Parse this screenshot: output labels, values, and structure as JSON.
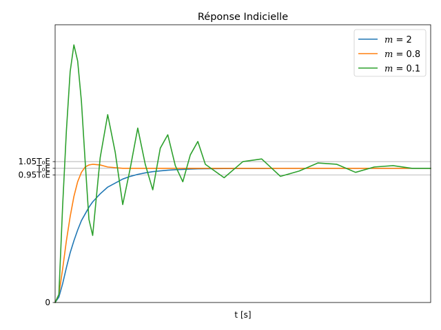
{
  "chart_data": {
    "type": "line",
    "title": "Réponse Indicielle",
    "xlabel": "t [s]",
    "ylabel": "",
    "xlim": [
      0,
      10
    ],
    "ylim": [
      0,
      2.07
    ],
    "x_ticks": [],
    "y_ticks": [
      {
        "value": 0,
        "label": "0"
      },
      {
        "value": 0.95,
        "label": "0.95T₀E"
      },
      {
        "value": 1.0,
        "label": "T₀E"
      },
      {
        "value": 1.05,
        "label": "1.05T₀E"
      }
    ],
    "reference_lines": [
      0.95,
      1.0,
      1.05
    ],
    "grid": false,
    "legend": "top-right",
    "series": [
      {
        "name": "m = 2",
        "legend_var": "m",
        "legend_val": "2",
        "color": "#1f77b4",
        "zeta": 2
      },
      {
        "name": "m = 0.8",
        "legend_var": "m",
        "legend_val": "0.8",
        "color": "#ff7f0e",
        "zeta": 0.8
      },
      {
        "name": "m = 0.1",
        "legend_var": "m",
        "legend_val": "0.1",
        "color": "#2ca02c",
        "zeta": 0.1
      }
    ],
    "x": [
      0.0,
      0.1,
      0.2,
      0.3,
      0.4,
      0.5,
      0.6,
      0.7,
      0.8,
      0.9,
      1.0,
      1.2,
      1.4,
      1.6,
      1.8,
      2.0,
      2.2,
      2.4,
      2.6,
      2.8,
      3.0,
      3.2,
      3.4,
      3.6,
      3.8,
      4.0,
      4.5,
      5.0,
      5.5,
      6.0,
      6.5,
      7.0,
      7.5,
      8.0,
      8.5,
      9.0,
      9.5,
      10.0
    ],
    "values": {
      "m = 2": [
        0.0,
        0.04,
        0.14,
        0.26,
        0.37,
        0.46,
        0.54,
        0.61,
        0.66,
        0.71,
        0.75,
        0.81,
        0.86,
        0.89,
        0.92,
        0.94,
        0.955,
        0.966,
        0.975,
        0.981,
        0.986,
        0.99,
        0.992,
        0.994,
        0.996,
        0.997,
        0.998,
        0.999,
        0.999,
        1.0,
        1.0,
        1.0,
        1.0,
        1.0,
        1.0,
        1.0,
        1.0,
        1.0
      ],
      "m = 0.8": [
        0.0,
        0.06,
        0.25,
        0.46,
        0.64,
        0.79,
        0.9,
        0.97,
        1.01,
        1.025,
        1.03,
        1.025,
        1.01,
        1.005,
        1.0,
        1.0,
        1.0,
        1.0,
        1.0,
        1.0,
        1.0,
        1.0,
        1.0,
        1.0,
        1.0,
        1.0,
        1.0,
        1.0,
        1.0,
        1.0,
        1.0,
        1.0,
        1.0,
        1.0,
        1.0,
        1.0,
        1.0,
        1.0
      ],
      "m = 0.1": [
        0.0,
        0.06,
        0.72,
        1.28,
        1.72,
        1.92,
        1.8,
        1.5,
        1.05,
        0.62,
        0.5,
        1.08,
        1.4,
        1.12,
        0.73,
        1.0,
        1.3,
        1.03,
        0.84,
        1.15,
        1.25,
        1.02,
        0.9,
        1.1,
        1.2,
        1.03,
        0.93,
        1.05,
        1.07,
        0.94,
        0.98,
        1.04,
        1.03,
        0.97,
        1.01,
        1.02,
        1.0,
        1.0
      ]
    }
  }
}
